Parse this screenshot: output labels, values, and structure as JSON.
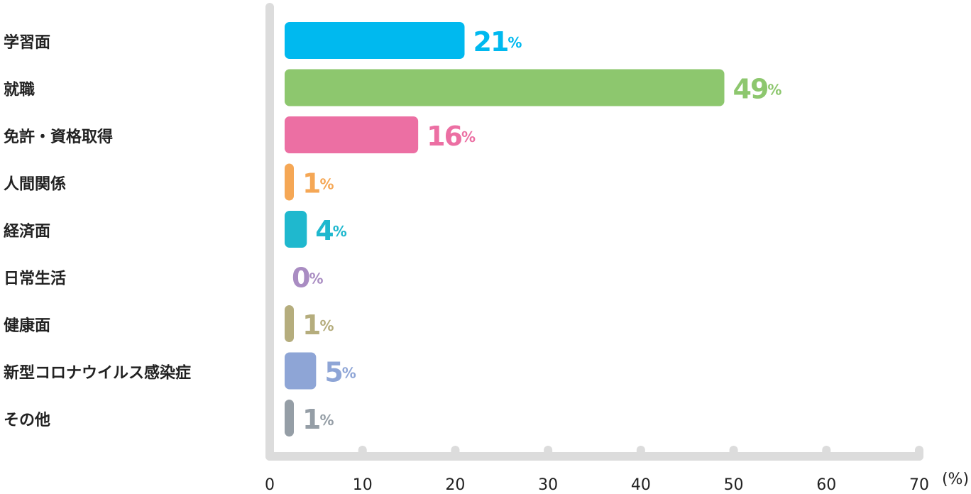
{
  "chart_data": {
    "type": "bar",
    "orientation": "horizontal",
    "categories": [
      "学習面",
      "就職",
      "免許・資格取得",
      "人間関係",
      "経済面",
      "日常生活",
      "健康面",
      "新型コロナウイルス感染症",
      "その他"
    ],
    "values": [
      21,
      49,
      16,
      1,
      4,
      0,
      1,
      5,
      1
    ],
    "value_labels": [
      "21%",
      "49%",
      "16%",
      "1%",
      "4%",
      "0%",
      "1%",
      "5%",
      "1%"
    ],
    "colors": [
      "#00b9ef",
      "#8dc76e",
      "#ec6fa3",
      "#f5a755",
      "#1fb8ce",
      "#a98cc2",
      "#b5ad7d",
      "#8ea5d6",
      "#959ea6"
    ],
    "xlim": [
      0,
      70
    ],
    "xticks": [
      0,
      10,
      20,
      30,
      40,
      50,
      60,
      70
    ],
    "xlabel": "(%)"
  }
}
